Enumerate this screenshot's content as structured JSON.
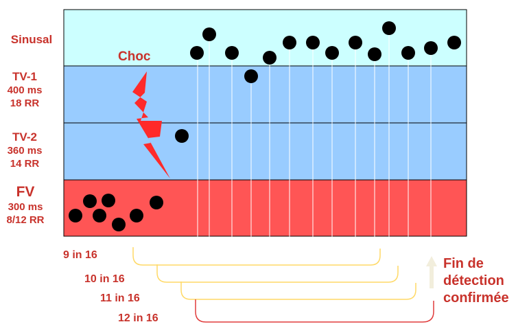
{
  "zones": [
    {
      "id": "sinusal",
      "label": "Sinusal",
      "color": "#ccffff"
    },
    {
      "id": "tv1",
      "label": "TV-1",
      "interval": "400 ms",
      "count": "18 RR",
      "color": "#99ccff"
    },
    {
      "id": "tv2",
      "label": "TV-2",
      "interval": "360 ms",
      "count": "14 RR",
      "color": "#99ccff"
    },
    {
      "id": "fv",
      "label": "FV",
      "interval": "300 ms",
      "count": "8/12 RR",
      "color": "#ff5555"
    }
  ],
  "shock_label": "Choc",
  "detection_rules": [
    {
      "label": "9 in 16",
      "color": "#ffd966"
    },
    {
      "label": "10 in 16",
      "color": "#ffd966"
    },
    {
      "label": "11 in 16",
      "color": "#ffd966"
    },
    {
      "label": "12 in 16",
      "color": "#e03c3c"
    }
  ],
  "conclusion": {
    "line1": "Fin de",
    "line2": "détection",
    "line3": "confirmée"
  },
  "colors": {
    "text": "#c8322b",
    "dot": "#000000",
    "bolt": "#ff2a2a",
    "arrow": "#f2eedc"
  }
}
